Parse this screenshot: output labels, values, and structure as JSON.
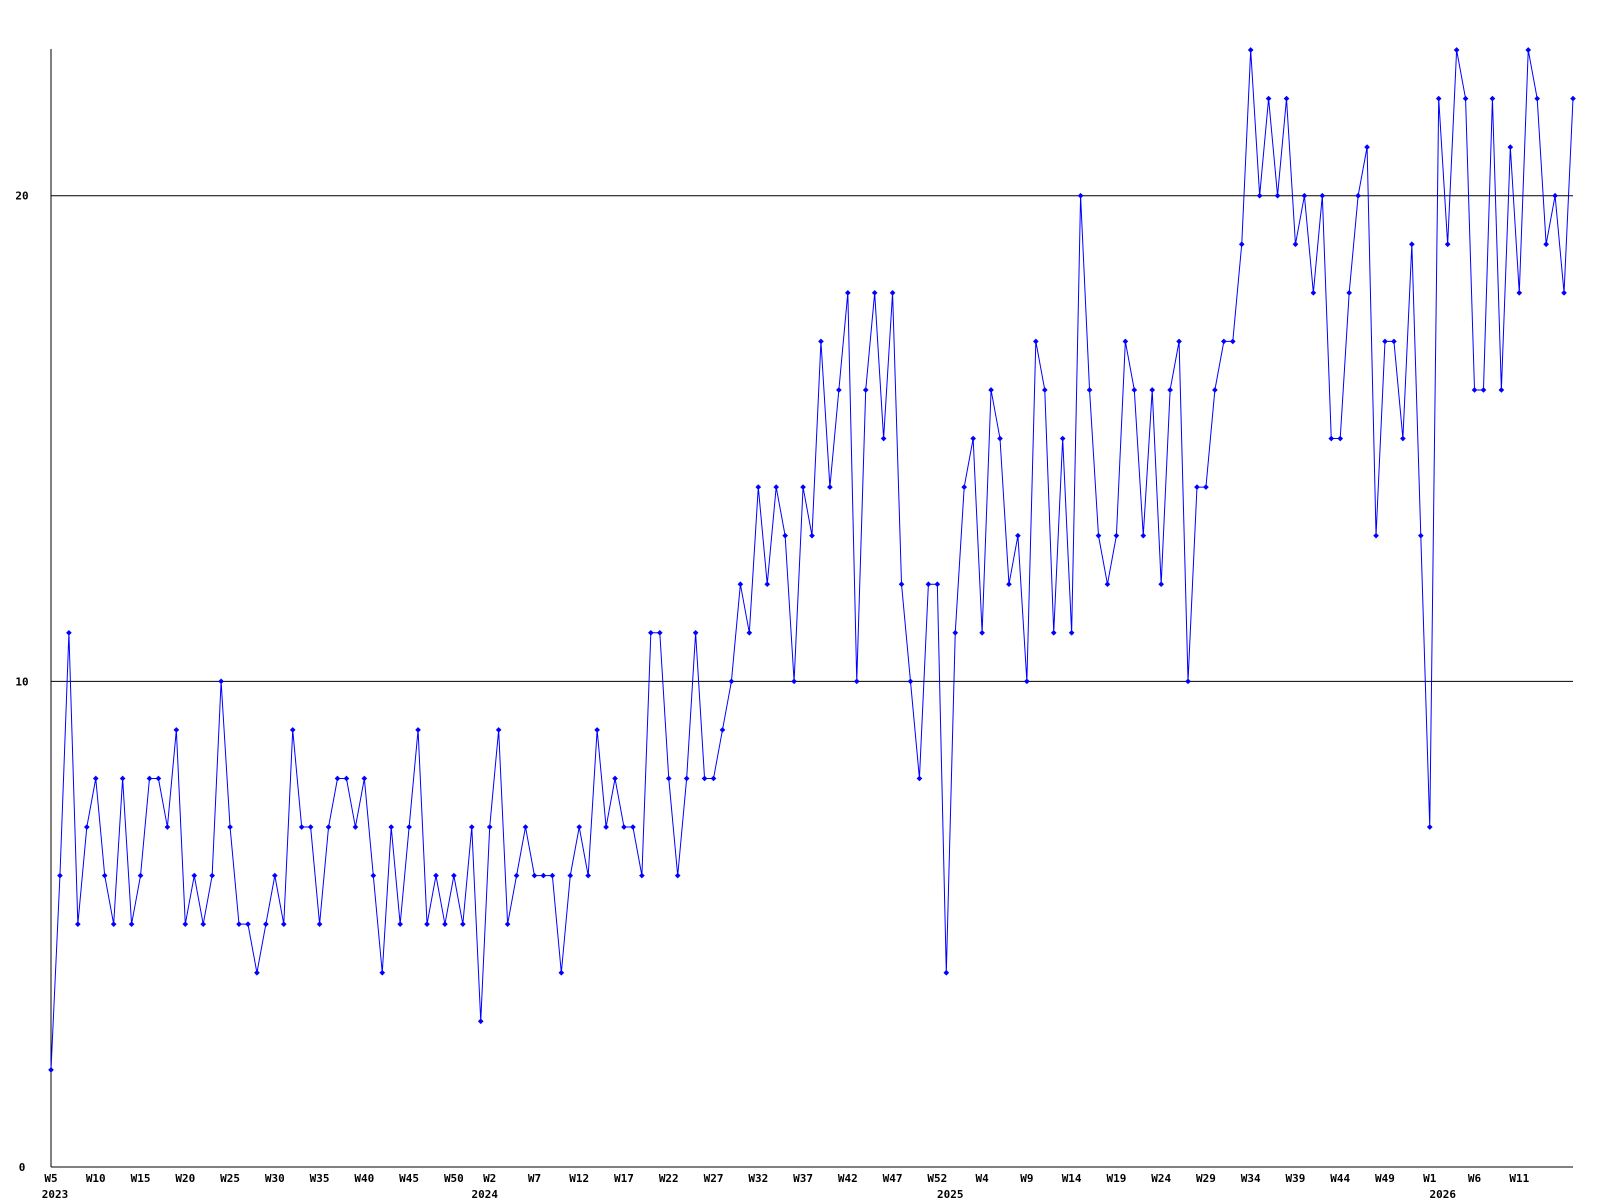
{
  "chart_data": {
    "type": "line",
    "categories": [
      "W5",
      null,
      null,
      null,
      null,
      "W10",
      null,
      null,
      null,
      null,
      "W15",
      null,
      null,
      null,
      null,
      "W20",
      null,
      null,
      null,
      null,
      "W25",
      null,
      null,
      null,
      null,
      "W30",
      null,
      null,
      null,
      null,
      "W35",
      null,
      null,
      null,
      null,
      "W40",
      null,
      null,
      null,
      null,
      "W45",
      null,
      null,
      null,
      null,
      "W50",
      null,
      null,
      null,
      "W2",
      null,
      null,
      null,
      null,
      "W7",
      null,
      null,
      null,
      null,
      "W12",
      null,
      null,
      null,
      null,
      "W17",
      null,
      null,
      null,
      null,
      "W22",
      null,
      null,
      null,
      null,
      "W27",
      null,
      null,
      null,
      null,
      "W32",
      null,
      null,
      null,
      null,
      "W37",
      null,
      null,
      null,
      null,
      "W42",
      null,
      null,
      null,
      null,
      "W47",
      null,
      null,
      null,
      null,
      "W52",
      null,
      null,
      null,
      null,
      "W4",
      null,
      null,
      null,
      null,
      "W9",
      null,
      null,
      null,
      null,
      "W14",
      null,
      null,
      null,
      null,
      "W19",
      null,
      null,
      null,
      null,
      "W24",
      null,
      null,
      null,
      null,
      "W29",
      null,
      null,
      null,
      null,
      "W34",
      null,
      null,
      null,
      null,
      "W39",
      null,
      null,
      null,
      null,
      "W44",
      null,
      null,
      null,
      null,
      "W49",
      null,
      null,
      null,
      null,
      "W1",
      null,
      null,
      null,
      null,
      "W6",
      null,
      null,
      null,
      null,
      "W11",
      null,
      null,
      null,
      null,
      null,
      null
    ],
    "years": [
      "2023",
      null,
      null,
      null,
      null,
      null,
      null,
      null,
      null,
      null,
      null,
      null,
      null,
      null,
      null,
      null,
      null,
      null,
      null,
      null,
      null,
      null,
      null,
      null,
      null,
      null,
      null,
      null,
      null,
      null,
      null,
      null,
      null,
      null,
      null,
      null,
      null,
      null,
      null,
      null,
      null,
      null,
      null,
      null,
      null,
      null,
      null,
      null,
      "2024",
      null,
      null,
      null,
      null,
      null,
      null,
      null,
      null,
      null,
      null,
      null,
      null,
      null,
      null,
      null,
      null,
      null,
      null,
      null,
      null,
      null,
      null,
      null,
      null,
      null,
      null,
      null,
      null,
      null,
      null,
      null,
      null,
      null,
      null,
      null,
      null,
      null,
      null,
      null,
      null,
      null,
      null,
      null,
      null,
      null,
      null,
      null,
      null,
      null,
      null,
      null,
      "2025",
      null,
      null,
      null,
      null,
      null,
      null,
      null,
      null,
      null,
      null,
      null,
      null,
      null,
      null,
      null,
      null,
      null,
      null,
      null,
      null,
      null,
      null,
      null,
      null,
      null,
      null,
      null,
      null,
      null,
      null,
      null,
      null,
      null,
      null,
      null,
      null,
      null,
      null,
      null,
      null,
      null,
      null,
      null,
      null,
      null,
      null,
      null,
      null,
      null,
      null,
      null,
      null,
      null,
      null,
      "2026",
      null,
      null,
      null,
      null,
      null,
      null,
      null,
      null,
      null,
      null,
      null,
      null,
      null,
      null,
      null,
      null
    ],
    "series": [
      {
        "color": "#0000ff",
        "values": [
          2,
          6,
          11,
          5,
          7,
          8,
          6,
          5,
          8,
          5,
          6,
          8,
          8,
          7,
          9,
          5,
          6,
          5,
          6,
          10,
          7,
          5,
          5,
          4,
          5,
          6,
          5,
          9,
          7,
          7,
          5,
          7,
          8,
          8,
          7,
          8,
          6,
          4,
          7,
          5,
          7,
          9,
          5,
          6,
          5,
          6,
          5,
          7,
          3,
          7,
          9,
          5,
          6,
          7,
          6,
          6,
          6,
          4,
          6,
          7,
          6,
          9,
          7,
          8,
          7,
          7,
          6,
          11,
          11,
          8,
          6,
          8,
          11,
          8,
          8,
          9,
          10,
          12,
          11,
          14,
          12,
          14,
          13,
          10,
          14,
          13,
          17,
          14,
          16,
          18,
          10,
          16,
          18,
          15,
          18,
          12,
          10,
          8,
          12,
          12,
          4,
          11,
          14,
          15,
          11,
          16,
          15,
          12,
          13,
          10,
          17,
          16,
          11,
          15,
          11,
          20,
          16,
          13,
          12,
          13,
          17,
          16,
          13,
          16,
          12,
          16,
          17,
          10,
          14,
          14,
          16,
          17,
          17,
          19,
          23,
          20,
          22,
          20,
          22,
          19,
          20,
          18,
          20,
          15,
          15,
          18,
          20,
          21,
          13,
          17,
          17,
          15,
          19,
          13,
          7,
          22,
          19,
          23,
          22,
          16,
          16,
          22,
          16,
          21,
          18,
          23,
          22,
          19,
          20,
          18,
          22
        ]
      }
    ],
    "ylim": [
      0,
      23
    ],
    "yticks": [
      0,
      10,
      20
    ],
    "grid": true
  }
}
